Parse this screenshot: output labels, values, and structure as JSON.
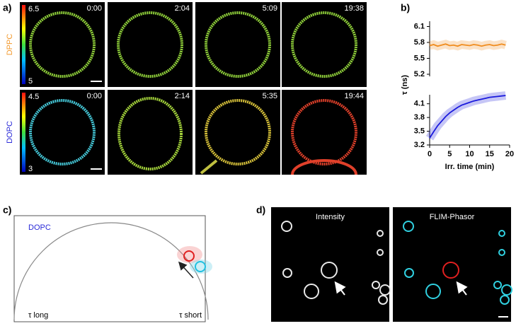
{
  "panels": {
    "a": {
      "label": "a)",
      "rows": [
        {
          "name": "DPPC",
          "color": "#f39a2e",
          "scale_max": 6.5,
          "scale_min": 5,
          "times": [
            "0:00",
            "2:04",
            "5:09",
            "19:38"
          ],
          "ring_colors": [
            "#8fcf3a",
            "#8fcf3a",
            "#8fcf3a",
            "#8fcf3a"
          ]
        },
        {
          "name": "DOPC",
          "color": "#2a2ad8",
          "scale_max": 4.5,
          "scale_min": 3,
          "times": [
            "0:00",
            "2:14",
            "5:35",
            "19:44"
          ],
          "ring_colors": [
            "#45c8d8",
            "#a6d63c",
            "#d8c23a",
            "#e0402a"
          ]
        }
      ]
    },
    "b": {
      "label": "b)",
      "chart_data": {
        "type": "line",
        "xlabel": "Irr. time (min)",
        "ylabel": "τ (ns)",
        "x": [
          0,
          1,
          2,
          3,
          4,
          5,
          6,
          7,
          8,
          9,
          10,
          11,
          12,
          13,
          14,
          15,
          16,
          17,
          18,
          19
        ],
        "series": [
          {
            "color": "#f08c1e",
            "values": [
              5.74,
              5.76,
              5.73,
              5.75,
              5.77,
              5.74,
              5.75,
              5.73,
              5.76,
              5.75,
              5.74,
              5.76,
              5.75,
              5.73,
              5.75,
              5.76,
              5.74,
              5.75,
              5.77,
              5.75
            ]
          },
          {
            "color": "#1a1adc",
            "axis": "y2",
            "values": [
              3.35,
              3.49,
              3.62,
              3.72,
              3.82,
              3.9,
              3.96,
              4.02,
              4.07,
              4.1,
              4.13,
              4.16,
              4.18,
              4.2,
              4.22,
              4.24,
              4.25,
              4.26,
              4.27,
              4.28
            ]
          }
        ],
        "xlim": [
          0,
          20
        ],
        "xticks": [
          0,
          5,
          10,
          15,
          20
        ],
        "ylim": [
          5.2,
          6.2
        ],
        "yticks": [
          5.2,
          5.5,
          5.8,
          6.1
        ],
        "y2lim": [
          3.2,
          4.25
        ],
        "y2ticks": [
          3.2,
          3.5,
          3.8,
          4.1
        ]
      }
    },
    "c": {
      "label": "c)",
      "title": "DOPC",
      "left": "τ long",
      "right": "τ short"
    },
    "d": {
      "label": "d)",
      "images": [
        "Intensity",
        "FLIM-Phasor"
      ]
    }
  }
}
